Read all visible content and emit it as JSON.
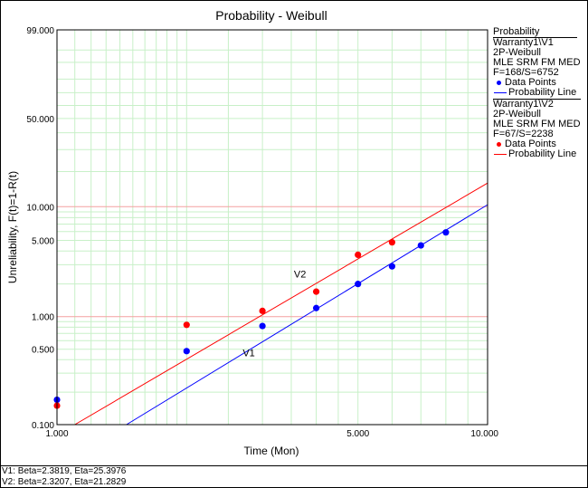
{
  "chart_data": {
    "type": "scatter",
    "title": "Probability - Weibull",
    "xlabel": "Time (Mon)",
    "ylabel": "Unreliability, F(t)=1-R(t)",
    "x_scale": "log",
    "y_scale": "weibull",
    "xlim": [
      1,
      10
    ],
    "ylim": [
      0.1,
      99
    ],
    "x_tick_labels": [
      "1.000",
      "5.000",
      "10.000"
    ],
    "x_ticks": [
      1,
      5,
      10
    ],
    "y_tick_labels": [
      "0.100",
      "0.500",
      "1.000",
      "5.000",
      "10.000",
      "50.000",
      "99.000"
    ],
    "y_ticks": [
      0.1,
      0.5,
      1,
      5,
      10,
      50,
      99
    ],
    "grid": true,
    "legend_position": "right",
    "series": [
      {
        "name": "V1",
        "color": "#0000ff",
        "points": [
          {
            "x": 1,
            "y": 0.17
          },
          {
            "x": 2,
            "y": 0.48
          },
          {
            "x": 3,
            "y": 0.82
          },
          {
            "x": 4,
            "y": 1.2
          },
          {
            "x": 5,
            "y": 2.0
          },
          {
            "x": 6,
            "y": 2.9
          },
          {
            "x": 7,
            "y": 4.5
          },
          {
            "x": 8,
            "y": 5.9
          }
        ],
        "line": [
          {
            "x": 1.45,
            "y": 0.1
          },
          {
            "x": 10,
            "y": 10.4
          }
        ],
        "label": "V1",
        "label_at": {
          "x": 2.7,
          "y": 0.43
        }
      },
      {
        "name": "V2",
        "color": "#ff0000",
        "points": [
          {
            "x": 1,
            "y": 0.15
          },
          {
            "x": 2,
            "y": 0.84
          },
          {
            "x": 3,
            "y": 1.13
          },
          {
            "x": 4,
            "y": 1.7
          },
          {
            "x": 5,
            "y": 3.7
          },
          {
            "x": 6,
            "y": 4.8
          }
        ],
        "line": [
          {
            "x": 1.1,
            "y": 0.1
          },
          {
            "x": 10,
            "y": 16
          }
        ],
        "label": "V2",
        "label_at": {
          "x": 3.55,
          "y": 2.3
        }
      }
    ]
  },
  "legend": {
    "header": "Probability",
    "groups": [
      {
        "name": "Warranty1\\V1",
        "model": "2P-Weibull",
        "method": "MLE SRM FM MED",
        "counts": "F=168/S=6752",
        "points_label": "Data Points",
        "line_label": "Probability Line",
        "color": "#0000ff"
      },
      {
        "name": "Warranty1\\V2",
        "model": "2P-Weibull",
        "method": "MLE SRM FM MED",
        "counts": "F=67/S=2238",
        "points_label": "Data Points",
        "line_label": "Probability Line",
        "color": "#ff0000"
      }
    ]
  },
  "footer": {
    "line1": "V1: Beta=2.3819, Eta=25.3976",
    "line2": "V2: Beta=2.3207, Eta=21.2829"
  }
}
